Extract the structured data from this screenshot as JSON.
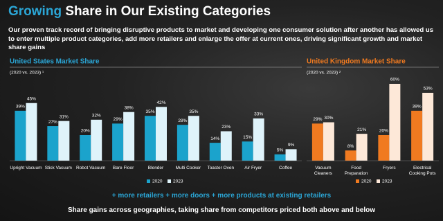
{
  "title": {
    "highlight": "Growing",
    "text": "Share in Our Existing Categories"
  },
  "intro": "Our proven track record of bringing disruptive products to market and developing one consumer solution after another has allowed us to enter multiple product categories, add more retailers and enlarge the offer at current ones, driving significant growth and market share gains",
  "chart_data": [
    {
      "type": "bar",
      "title": "United States Market Share",
      "subtitle": "(2020 vs. 2023) ¹",
      "categories": [
        "Upright Vacuum",
        "Stick Vacuum",
        "Robot Vacuum",
        "Bare Floor",
        "Blender",
        "Multi Cooker",
        "Toaster Oven",
        "Air Fryer",
        "Coffee"
      ],
      "series": [
        {
          "name": "2020",
          "color": "#1ba3cc",
          "values": [
            39,
            27,
            20,
            29,
            35,
            28,
            14,
            15,
            5
          ],
          "value_labels": [
            "39%",
            "27%",
            "20%",
            "29%",
            "35%",
            "28%",
            "14%",
            "15%",
            "5%"
          ]
        },
        {
          "name": "2023",
          "color": "#dff3fa",
          "values": [
            45,
            31,
            32,
            38,
            42,
            35,
            23,
            33,
            9
          ],
          "value_labels": [
            "45%",
            "31%",
            "32%",
            "38%",
            "42%",
            "35%",
            "23%",
            "33%",
            "9%"
          ]
        }
      ],
      "legend": "bottom",
      "title_color": "#2ba6d6"
    },
    {
      "type": "bar",
      "title": "United Kingdom Market Share",
      "subtitle": "(2020 vs. 2023) ²",
      "categories": [
        "Vacuum Cleaners",
        "Food Preparation",
        "Fryers",
        "Electrical Cooking Pots"
      ],
      "series": [
        {
          "name": "2020",
          "color": "#f07a20",
          "values": [
            29,
            8,
            20,
            39
          ],
          "value_labels": [
            "29%",
            "8%",
            "20%",
            "39%"
          ]
        },
        {
          "name": "2023",
          "color": "#fde8d8",
          "values": [
            30,
            21,
            60,
            53
          ],
          "value_labels": [
            "30%",
            "21%",
            "60%",
            "53%"
          ]
        }
      ],
      "legend": "bottom",
      "title_color": "#f07a20"
    }
  ],
  "tagline": "+ more retailers + more doors + more products at existing retailers",
  "footer": "Share gains across geographies, taking share from competitors priced both above and below"
}
